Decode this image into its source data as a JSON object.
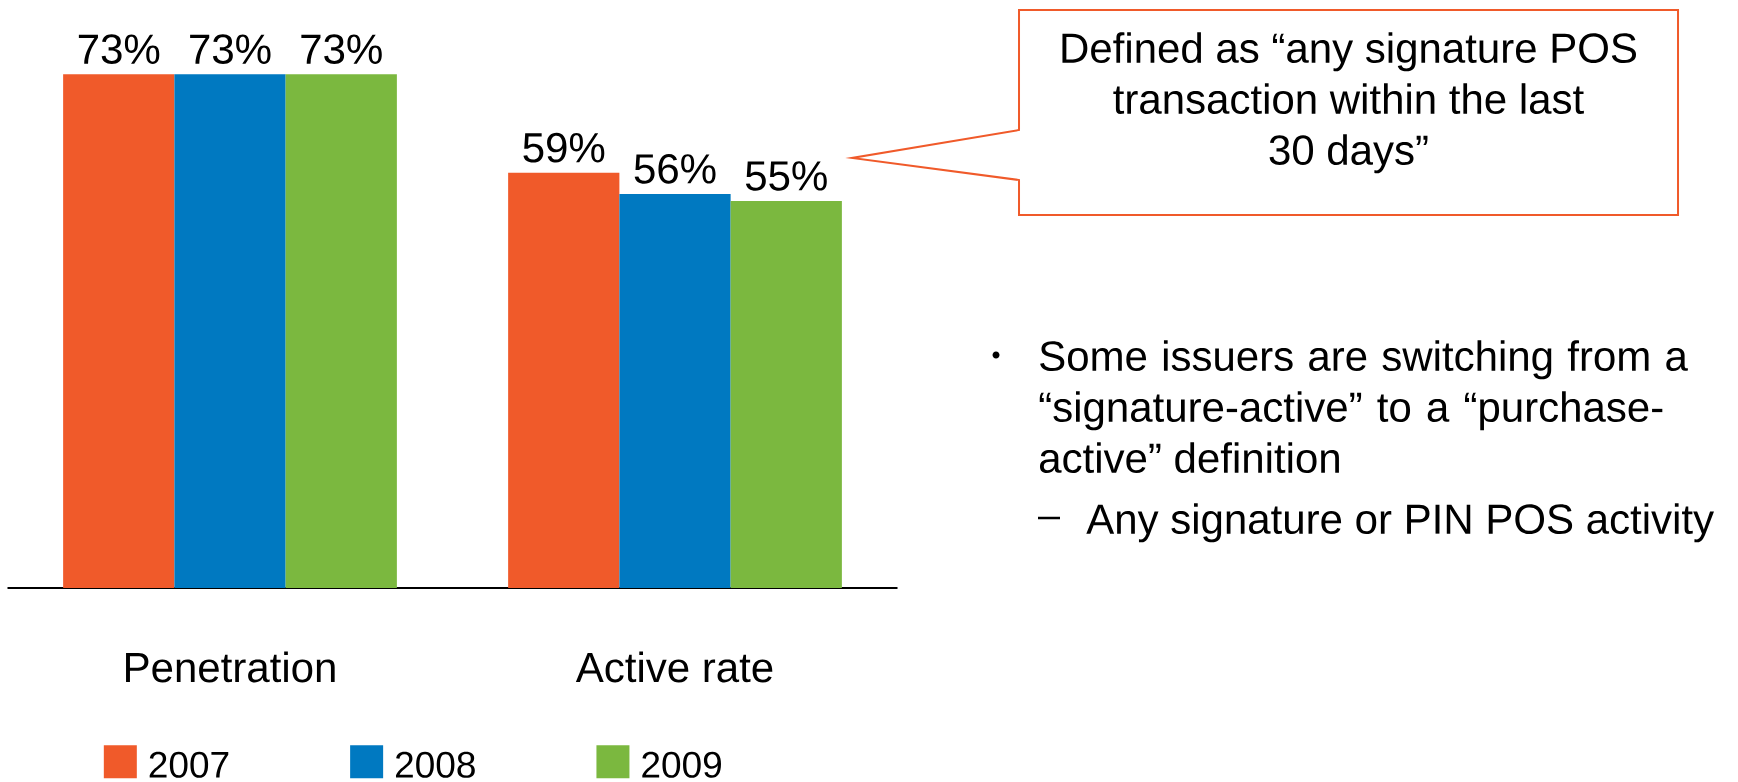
{
  "chart_data": {
    "type": "bar",
    "categories": [
      "Penetration",
      "Active rate"
    ],
    "series": [
      {
        "name": "2007",
        "color": "#f05a2a",
        "values": [
          73,
          59
        ],
        "value_labels": [
          "73%",
          "59%"
        ]
      },
      {
        "name": "2008",
        "color": "#0079c1",
        "values": [
          73,
          56
        ],
        "value_labels": [
          "73%",
          "56%"
        ]
      },
      {
        "name": "2009",
        "color": "#7bb83f",
        "values": [
          73,
          55
        ],
        "value_labels": [
          "73%",
          "55%"
        ]
      }
    ],
    "legend": "bottom",
    "annotations": [
      "Defined as “any signature POS transaction within the last 30 days”",
      "Some issuers are switching from a “signature-active” to a “purchase-active” definition",
      "Any signature or PIN POS activity"
    ]
  }
}
